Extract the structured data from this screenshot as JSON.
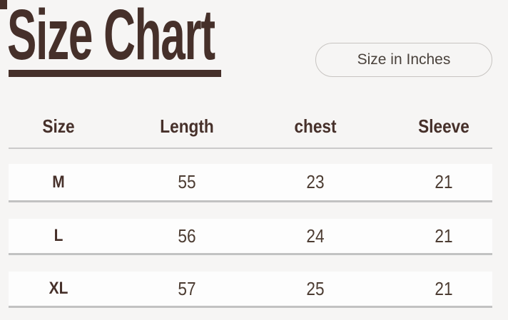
{
  "page": {
    "background_color": "#f6f5f4",
    "brand_color": "#46302a"
  },
  "header": {
    "title": "Size Chart",
    "unit_button_label": "Size in Inches"
  },
  "table": {
    "columns": [
      "Size",
      "Length",
      "chest",
      "Sleeve"
    ],
    "rows": [
      [
        "M",
        "55",
        "23",
        "21"
      ],
      [
        "L",
        "56",
        "24",
        "21"
      ],
      [
        "XL",
        "57",
        "25",
        "21"
      ]
    ]
  }
}
